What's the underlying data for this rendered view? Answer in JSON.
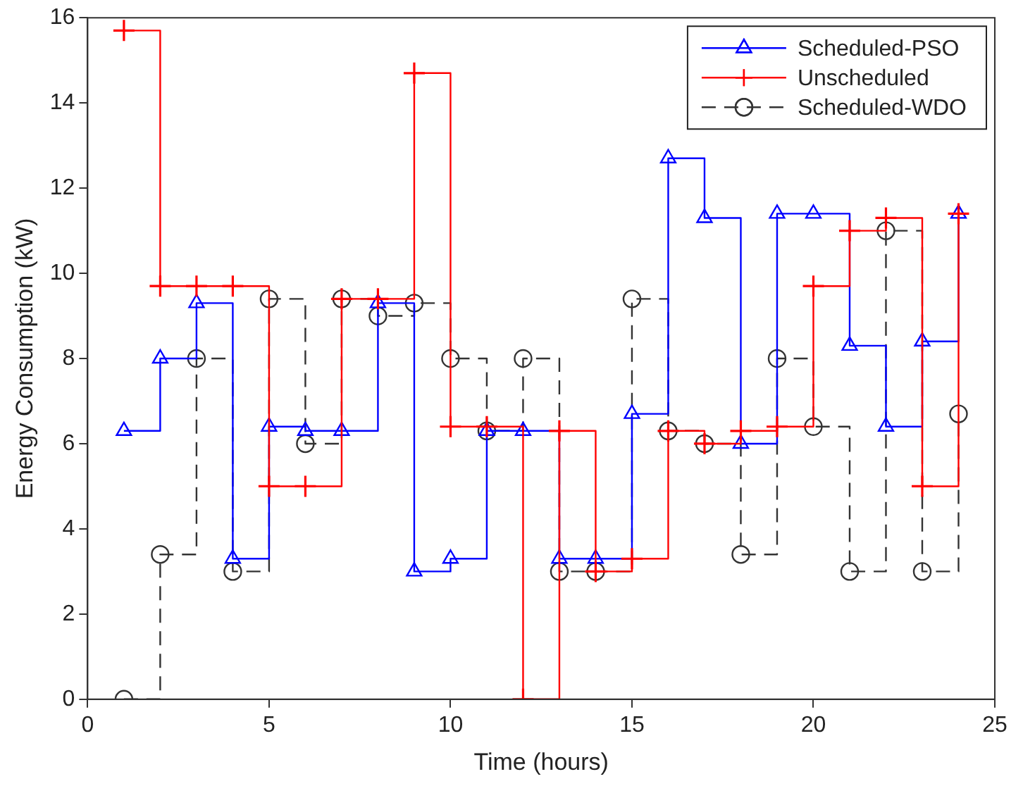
{
  "chart_data": {
    "type": "step",
    "xlabel": "Time (hours)",
    "ylabel": "Energy Consumption (kW)",
    "x": [
      1,
      2,
      3,
      4,
      5,
      6,
      7,
      8,
      9,
      10,
      11,
      12,
      13,
      14,
      15,
      16,
      17,
      18,
      19,
      20,
      21,
      22,
      23,
      24
    ],
    "xlim": [
      0,
      25
    ],
    "xticks": [
      0,
      5,
      10,
      15,
      20,
      25
    ],
    "ylim": [
      0,
      16
    ],
    "yticks": [
      0,
      2,
      4,
      6,
      8,
      10,
      12,
      14,
      16
    ],
    "grid": false,
    "legend": "top right",
    "series": [
      {
        "name": "Scheduled-PSO",
        "color": "#0000ff",
        "marker": "triangle",
        "line_style": "solid",
        "values": [
          6.3,
          8.0,
          9.3,
          3.3,
          6.4,
          6.3,
          6.3,
          9.3,
          3.0,
          3.3,
          6.3,
          6.3,
          3.3,
          3.3,
          6.7,
          12.7,
          11.3,
          6.0,
          11.4,
          11.4,
          8.3,
          6.4,
          8.4,
          11.4
        ]
      },
      {
        "name": "Unscheduled",
        "color": "#ff0000",
        "marker": "cross",
        "line_style": "solid",
        "values": [
          15.7,
          9.7,
          9.7,
          9.7,
          5.0,
          5.0,
          9.4,
          9.4,
          14.7,
          6.4,
          6.4,
          0,
          6.3,
          3.0,
          3.3,
          6.3,
          6.0,
          6.3,
          6.4,
          9.7,
          11.0,
          11.3,
          5.0,
          11.4
        ]
      },
      {
        "name": "Scheduled-WDO",
        "color": "#333333",
        "marker": "circle",
        "line_style": "dashed",
        "values": [
          0,
          3.4,
          8.0,
          3.0,
          9.4,
          6.0,
          9.4,
          9.0,
          9.3,
          8.0,
          6.3,
          8.0,
          3.0,
          3.0,
          9.4,
          6.3,
          6.0,
          3.4,
          8.0,
          6.4,
          3.0,
          11.0,
          3.0,
          6.7
        ]
      }
    ]
  }
}
